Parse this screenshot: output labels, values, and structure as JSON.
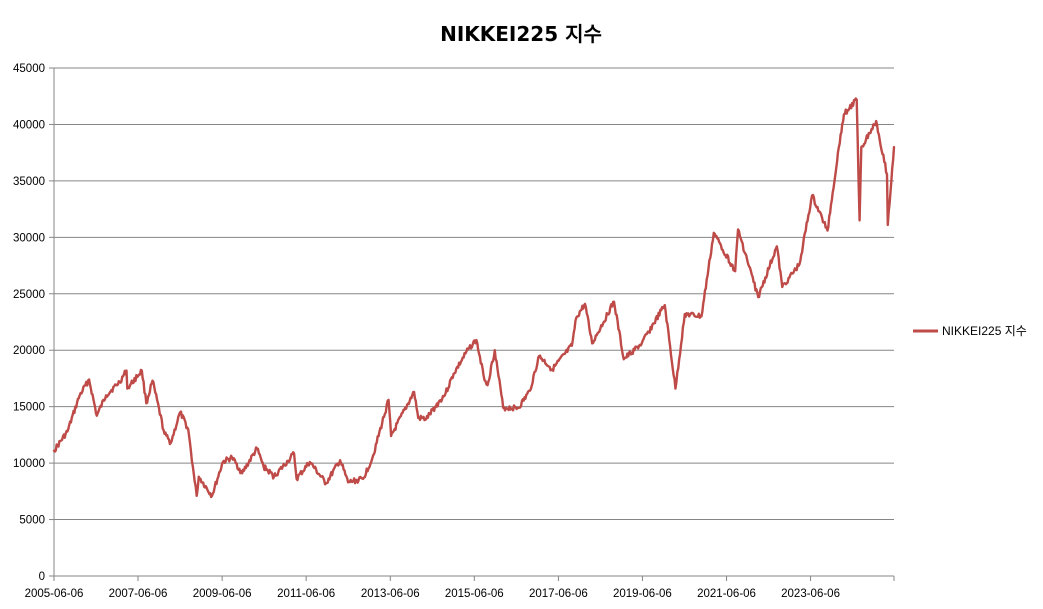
{
  "chart_data": {
    "type": "line",
    "title": "NIKKEI225 지수",
    "xlabel": "",
    "ylabel": "",
    "ylim": [
      0,
      45000
    ],
    "yticks": [
      0,
      5000,
      10000,
      15000,
      20000,
      25000,
      30000,
      35000,
      40000,
      45000
    ],
    "xlim": [
      "2005-06-06",
      "2025-05-31"
    ],
    "xticks": [
      "2005-06-06",
      "2007-06-06",
      "2009-06-06",
      "2011-06-06",
      "2013-06-06",
      "2015-06-06",
      "2017-06-06",
      "2019-06-06",
      "2021-06-06",
      "2023-06-06"
    ],
    "grid": true,
    "legend_position": "right",
    "series": [
      {
        "name": "NIKKEI225 지수",
        "color": "#be4b48",
        "points": [
          [
            "2005-06-06",
            11100
          ],
          [
            "2005-10-01",
            12800
          ],
          [
            "2006-01-15",
            16000
          ],
          [
            "2006-04-07",
            17400
          ],
          [
            "2006-06-13",
            14200
          ],
          [
            "2006-09-01",
            16000
          ],
          [
            "2006-12-29",
            17200
          ],
          [
            "2007-02-26",
            18200
          ],
          [
            "2007-03-05",
            16600
          ],
          [
            "2007-07-09",
            18200
          ],
          [
            "2007-08-17",
            15300
          ],
          [
            "2007-10-10",
            17300
          ],
          [
            "2008-01-22",
            12600
          ],
          [
            "2008-03-17",
            11800
          ],
          [
            "2008-06-06",
            14500
          ],
          [
            "2008-08-15",
            13000
          ],
          [
            "2008-10-10",
            8400
          ],
          [
            "2008-10-28",
            7100
          ],
          [
            "2008-11-15",
            8800
          ],
          [
            "2009-03-10",
            7100
          ],
          [
            "2009-06-12",
            10100
          ],
          [
            "2009-08-31",
            10500
          ],
          [
            "2009-11-27",
            9100
          ],
          [
            "2010-04-05",
            11300
          ],
          [
            "2010-06-01",
            9700
          ],
          [
            "2010-08-31",
            8800
          ],
          [
            "2010-12-31",
            10200
          ],
          [
            "2011-02-21",
            10850
          ],
          [
            "2011-03-15",
            8600
          ],
          [
            "2011-07-08",
            10100
          ],
          [
            "2011-11-25",
            8200
          ],
          [
            "2012-03-27",
            10250
          ],
          [
            "2012-06-04",
            8300
          ],
          [
            "2012-10-12",
            8600
          ],
          [
            "2012-12-31",
            10400
          ],
          [
            "2013-05-22",
            15600
          ],
          [
            "2013-06-13",
            12400
          ],
          [
            "2013-12-30",
            16300
          ],
          [
            "2014-02-04",
            14000
          ],
          [
            "2014-04-14",
            13900
          ],
          [
            "2014-09-30",
            16200
          ],
          [
            "2014-12-08",
            17900
          ],
          [
            "2015-04-22",
            20200
          ],
          [
            "2015-06-24",
            20900
          ],
          [
            "2015-08-25",
            17800
          ],
          [
            "2015-09-29",
            16900
          ],
          [
            "2015-12-01",
            20000
          ],
          [
            "2016-02-12",
            14900
          ],
          [
            "2016-06-24",
            14900
          ],
          [
            "2016-09-30",
            16400
          ],
          [
            "2016-12-21",
            19500
          ],
          [
            "2017-04-14",
            18300
          ],
          [
            "2017-10-01",
            20400
          ],
          [
            "2017-11-09",
            22900
          ],
          [
            "2018-01-23",
            24100
          ],
          [
            "2018-03-26",
            20600
          ],
          [
            "2018-10-02",
            24300
          ],
          [
            "2018-12-26",
            19200
          ],
          [
            "2019-05-31",
            20600
          ],
          [
            "2019-12-17",
            24000
          ],
          [
            "2020-03-19",
            16600
          ],
          [
            "2020-06-08",
            23200
          ],
          [
            "2020-10-31",
            23000
          ],
          [
            "2021-02-15",
            30400
          ],
          [
            "2021-08-20",
            27000
          ],
          [
            "2021-09-14",
            30700
          ],
          [
            "2022-03-08",
            24700
          ],
          [
            "2022-08-17",
            29200
          ],
          [
            "2022-10-03",
            25600
          ],
          [
            "2023-03-01",
            27600
          ],
          [
            "2023-06-19",
            33700
          ],
          [
            "2023-10-31",
            30600
          ],
          [
            "2024-02-22",
            39100
          ],
          [
            "2024-03-22",
            40900
          ],
          [
            "2024-07-11",
            42200
          ],
          [
            "2024-08-05",
            31500
          ],
          [
            "2024-08-20",
            38000
          ],
          [
            "2024-12-27",
            40300
          ],
          [
            "2025-03-31",
            35600
          ],
          [
            "2025-04-07",
            31100
          ],
          [
            "2025-05-31",
            38000
          ]
        ]
      }
    ]
  }
}
